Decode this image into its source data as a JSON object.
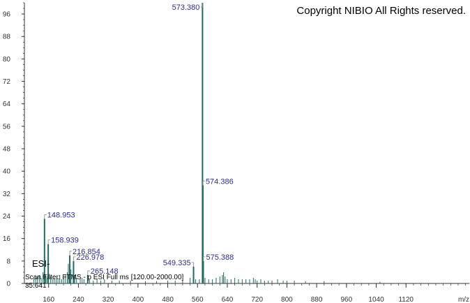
{
  "chart_data": {
    "type": "bar",
    "title": "",
    "xlabel": "",
    "ylabel": "",
    "x_unit": "m/z",
    "xlim": [
      95,
      1290
    ],
    "ylim": [
      0,
      100
    ],
    "x_ticks": [
      160,
      240,
      320,
      400,
      480,
      560,
      640,
      720,
      800,
      880,
      960,
      1040,
      1120
    ],
    "y_ticks": [
      0,
      8,
      16,
      24,
      32,
      40,
      48,
      56,
      64,
      72,
      80,
      88,
      96
    ],
    "colors": {
      "peak": "#1d6b63",
      "label": "#2b2b9a",
      "axis": "#333333"
    },
    "labeled_peaks": [
      {
        "mz": 148.953,
        "intensity": 23,
        "label": "148.953"
      },
      {
        "mz": 158.939,
        "intensity": 14,
        "label": "158.939"
      },
      {
        "mz": 216.854,
        "intensity": 10,
        "label": "216.854"
      },
      {
        "mz": 226.978,
        "intensity": 8,
        "label": "226.978"
      },
      {
        "mz": 265.148,
        "intensity": 3,
        "label": "265.148"
      },
      {
        "mz": 549.335,
        "intensity": 6,
        "label": "549.335"
      },
      {
        "mz": 573.38,
        "intensity": 100,
        "label": "573.380"
      },
      {
        "mz": 574.386,
        "intensity": 35,
        "label": "574.386"
      },
      {
        "mz": 575.388,
        "intensity": 8,
        "label": "575.388"
      }
    ],
    "minor_peaks": [
      [
        120,
        1.5
      ],
      [
        125,
        2
      ],
      [
        130,
        2.5
      ],
      [
        135,
        3
      ],
      [
        140,
        2
      ],
      [
        145,
        4
      ],
      [
        152,
        3
      ],
      [
        155,
        2
      ],
      [
        165,
        2.5
      ],
      [
        170,
        1.5
      ],
      [
        175,
        2
      ],
      [
        180,
        1.5
      ],
      [
        185,
        2
      ],
      [
        190,
        3
      ],
      [
        195,
        1.5
      ],
      [
        200,
        2
      ],
      [
        205,
        3
      ],
      [
        210,
        4
      ],
      [
        213,
        7
      ],
      [
        220,
        5
      ],
      [
        230,
        3
      ],
      [
        235,
        2
      ],
      [
        245,
        1.5
      ],
      [
        250,
        2
      ],
      [
        255,
        1.5
      ],
      [
        270,
        1.5
      ],
      [
        280,
        1
      ],
      [
        290,
        1.5
      ],
      [
        300,
        1
      ],
      [
        310,
        1.5
      ],
      [
        330,
        1
      ],
      [
        350,
        1
      ],
      [
        380,
        1
      ],
      [
        420,
        0.8
      ],
      [
        450,
        0.8
      ],
      [
        480,
        1
      ],
      [
        500,
        1
      ],
      [
        520,
        1.2
      ],
      [
        540,
        2
      ],
      [
        555,
        1.5
      ],
      [
        565,
        1.5
      ],
      [
        580,
        2
      ],
      [
        590,
        1.5
      ],
      [
        600,
        1.5
      ],
      [
        610,
        2
      ],
      [
        620,
        2.5
      ],
      [
        627,
        3
      ],
      [
        630,
        4
      ],
      [
        634,
        2.5
      ],
      [
        640,
        1.5
      ],
      [
        650,
        1.5
      ],
      [
        660,
        2
      ],
      [
        670,
        1.5
      ],
      [
        680,
        1.5
      ],
      [
        690,
        1.5
      ],
      [
        700,
        1.5
      ],
      [
        710,
        2
      ],
      [
        715,
        1.5
      ],
      [
        720,
        1
      ],
      [
        730,
        1.5
      ],
      [
        740,
        1
      ],
      [
        750,
        1
      ],
      [
        760,
        1
      ],
      [
        775,
        1.5
      ],
      [
        790,
        1
      ],
      [
        800,
        1
      ],
      [
        820,
        1
      ],
      [
        850,
        0.8
      ],
      [
        900,
        0.8
      ],
      [
        1050,
        0.6
      ]
    ]
  },
  "texts": {
    "copyright": "Copyright NIBIO All Rights reserved.",
    "ionization_mode": "ESI-",
    "scan_filter": "Scan Filter: FTMS - p ESI Full ms [120.00-2000.00]",
    "base_intensity": "35.641"
  }
}
